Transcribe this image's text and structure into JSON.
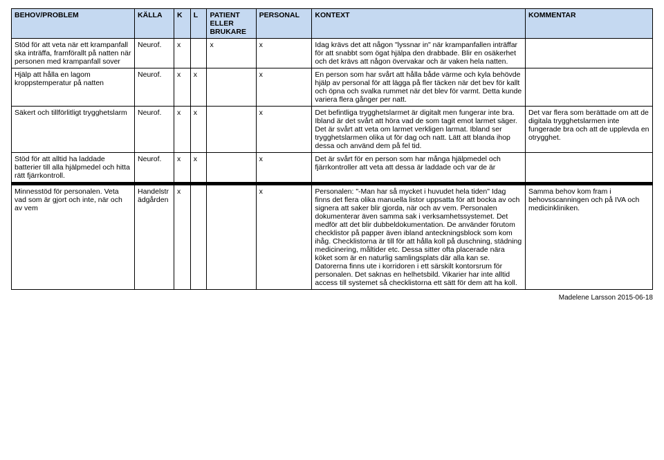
{
  "headers": {
    "behov": "BEHOV/PROBLEM",
    "kalla": "KÄLLA",
    "k": "K",
    "l": "L",
    "patient": "PATIENT ELLER BRUKARE",
    "personal": "PERSONAL",
    "kontext": "KONTEXT",
    "kommentar": "KOMMENTAR"
  },
  "rows": [
    {
      "behov": "Stöd för att veta när ett krampanfall ska inträffa, framförallt på natten när personen med krampanfall sover",
      "kalla": "Neurof.",
      "k": "x",
      "l": "",
      "patient": "x",
      "personal": "x",
      "kontext": "Idag krävs det att någon \"lyssnar in\" när krampanfallen inträffar för att snabbt som ögat hjälpa den drabbade. Blir en osäkerhet och det krävs att någon övervakar och är vaken hela natten.",
      "kommentar": ""
    },
    {
      "behov": "Hjälp att hålla en lagom kroppstemperatur på natten",
      "kalla": "Neurof.",
      "k": "x",
      "l": "x",
      "patient": "",
      "personal": "x",
      "kontext": "En person som har svårt att hålla både värme och kyla behövde hjälp av personal för att lägga på fler täcken när det bev för kallt och öpna och svalka rummet när det blev för varmt. Detta kunde variera flera gånger per natt.",
      "kommentar": ""
    },
    {
      "behov": "Säkert och tillförlitligt trygghetslarm",
      "kalla": "Neurof.",
      "k": "x",
      "l": "x",
      "patient": "",
      "personal": "x",
      "kontext": "Det befintliga trygghetslarmet är digitalt men fungerar inte bra. Ibland är det svårt att höra vad de som tagit emot larmet säger. Det är svårt att veta om larmet verkligen larmat. Ibland ser trygghetslarmen olika ut för dag och natt. Lätt att blanda ihop dessa och använd dem på fel tid.",
      "kommentar": "Det var flera som berättade om att de digitala trygghetslarmen inte fungerade bra och att de upplevda en otrygghet."
    },
    {
      "behov": "Stöd för att alltid ha laddade batterier till alla hjälpmedel och hitta rätt fjärrkontroll.",
      "kalla": "Neurof.",
      "k": "x",
      "l": "x",
      "patient": "",
      "personal": "x",
      "kontext": "Det är svårt för en person som har många hjälpmedel och fjärrkontroller att veta att dessa är laddade och var de är",
      "kommentar": ""
    }
  ],
  "rows2": [
    {
      "behov": "Minnesstöd för personalen. Veta vad som är gjort och inte, när och av vem",
      "kalla": "Handelsträdgården",
      "k": "x",
      "l": "",
      "patient": "",
      "personal": "x",
      "kontext": "Personalen: \"-Man har så mycket i huvudet hela tiden\"\nIdag finns det flera olika manuella listor uppsatta för att bocka av och signera att saker blir gjorda, när och av vem. Personalen dokumenterar även samma sak i verksamhetssystemet. Det medför att det blir dubbeldokumentation. De använder förutom checklistor på papper även ibland anteckningsblock som kom ihåg. Checklistorna är till för att hålla koll på duschning, städning medicinering, måltider etc. Dessa sitter ofta placerade nära köket som är en naturlig samlingsplats där alla kan se. Datorerna finns ute i korridoren i ett särskilt kontorsrum för personalen. Det saknas en helhetsbild. Vikarier har inte alltid access till systemet så checklistorna ett sätt för dem att ha koll.",
      "kommentar": "Samma behov kom fram i behovsscanningen och på IVA och medicinkliniken."
    }
  ],
  "footer": "Madelene Larsson 2015-06-18",
  "colors": {
    "header_bg": "#c5d9f1",
    "border": "#000000",
    "separator": "#000000",
    "page_bg": "#ffffff",
    "text": "#000000"
  }
}
